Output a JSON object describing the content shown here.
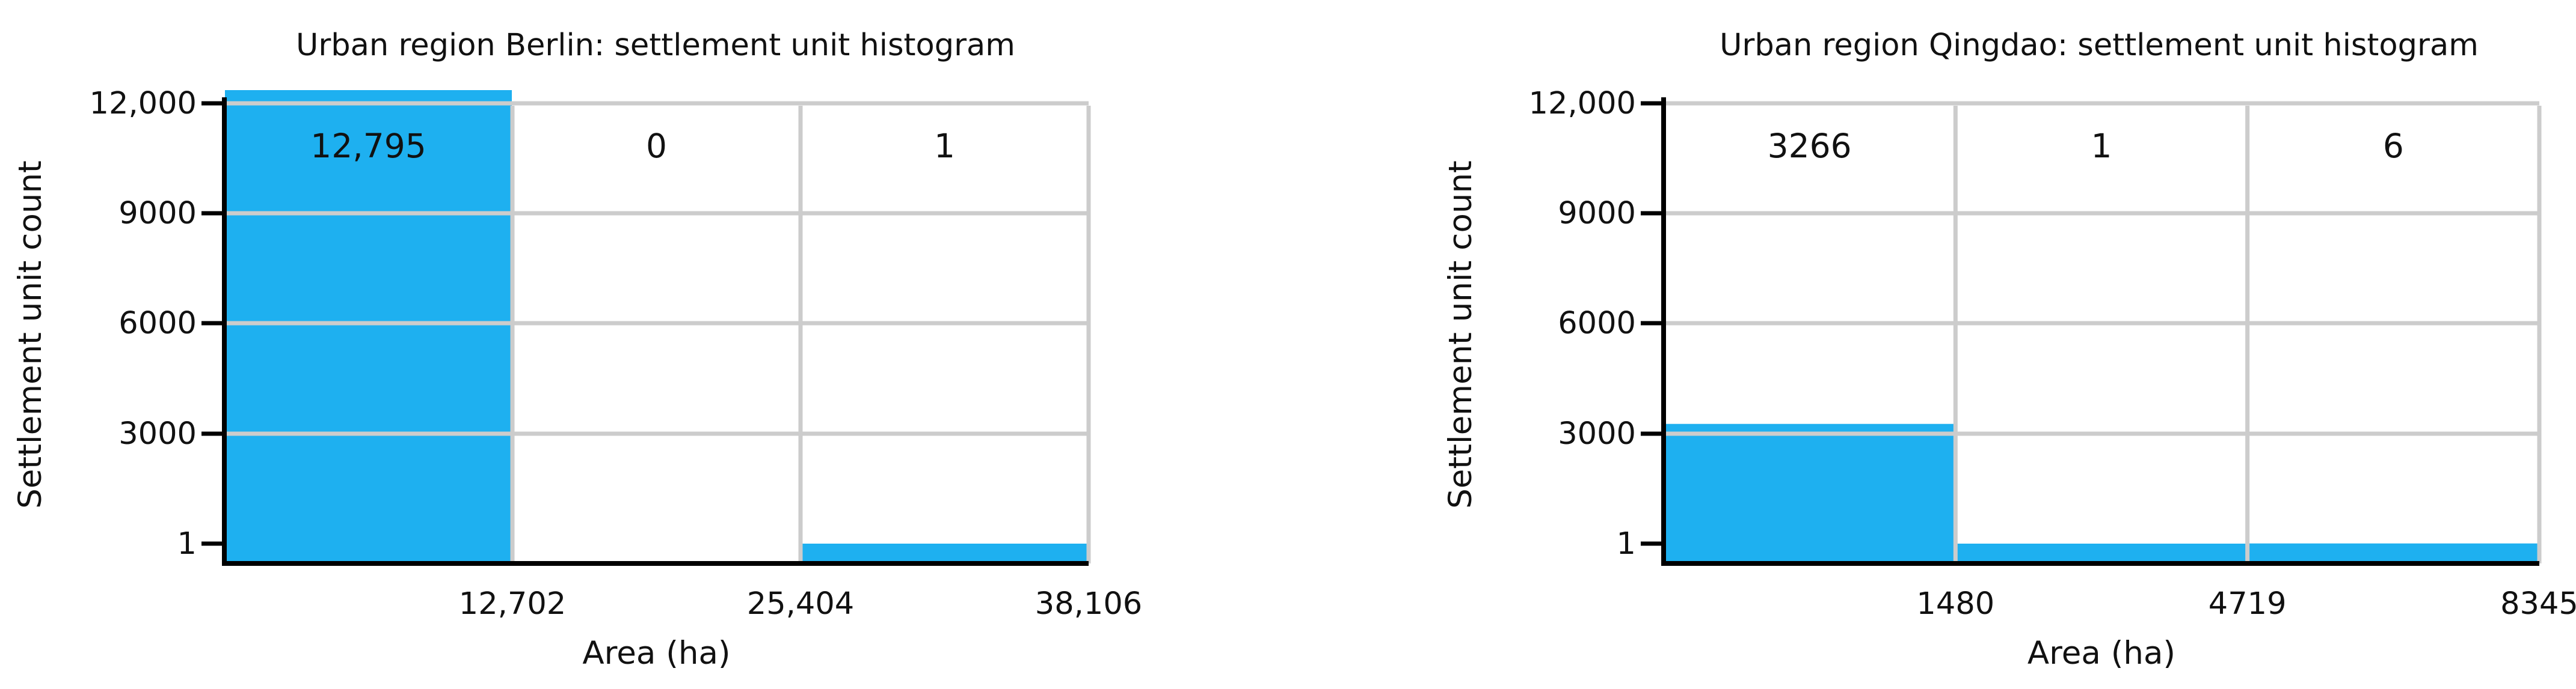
{
  "chart_data": [
    {
      "type": "bar",
      "title": "Urban region Berlin: settlement unit histogram",
      "xlabel": "Area (ha)",
      "ylabel": "Settlement unit count",
      "x_tick_labels": [
        "12,702",
        "25,404",
        "38,106"
      ],
      "y_tick_labels": [
        "1",
        "3000",
        "6000",
        "9000",
        "12,000"
      ],
      "bins": [
        {
          "label": "12,795",
          "value": 12795
        },
        {
          "label": "0",
          "value": 0
        },
        {
          "label": "1",
          "value": 1
        }
      ],
      "grid": true,
      "bar_color": "#1eb0f0"
    },
    {
      "type": "bar",
      "title": "Urban region Qingdao: settlement unit histogram",
      "xlabel": "Area (ha)",
      "ylabel": "Settlement unit count",
      "x_tick_labels": [
        "1480",
        "4719",
        "8345"
      ],
      "y_tick_labels": [
        "1",
        "3000",
        "6000",
        "9000",
        "12,000"
      ],
      "bins": [
        {
          "label": "3266",
          "value": 3266
        },
        {
          "label": "1",
          "value": 1
        },
        {
          "label": "6",
          "value": 6
        }
      ],
      "grid": true,
      "bar_color": "#1eb0f0"
    }
  ]
}
